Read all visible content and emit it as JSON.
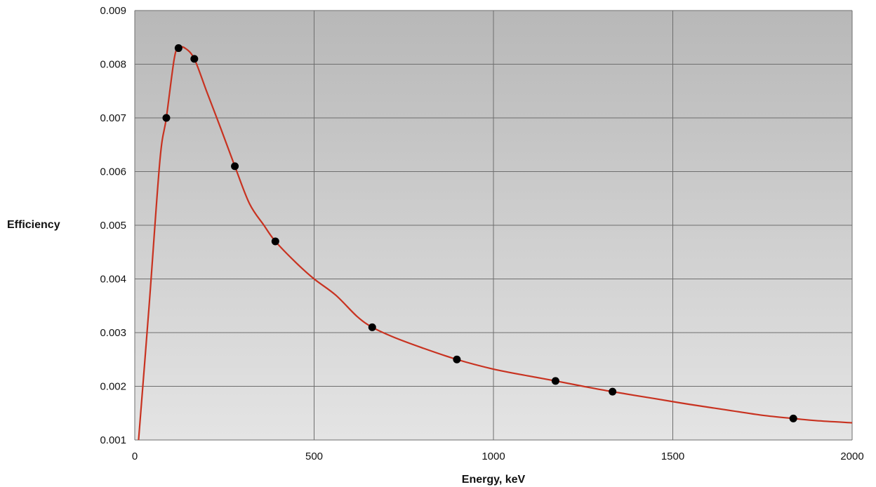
{
  "chart_data": {
    "type": "scatter",
    "xlabel": "Energy, keV",
    "ylabel": "Efficiency",
    "xlim": [
      0,
      2000
    ],
    "ylim": [
      0.001,
      0.009
    ],
    "x_ticks": [
      "0",
      "500",
      "1000",
      "1500",
      "2000"
    ],
    "y_ticks": [
      "0.001",
      "0.002",
      "0.003",
      "0.004",
      "0.005",
      "0.006",
      "0.007",
      "0.008",
      "0.009"
    ],
    "grid": true,
    "legend": "none",
    "series": [
      {
        "kind": "points",
        "x": [
          88,
          122,
          166,
          279,
          392,
          662,
          898,
          1173,
          1332,
          1836
        ],
        "y": [
          0.007,
          0.0083,
          0.0081,
          0.0061,
          0.0047,
          0.0031,
          0.0025,
          0.0021,
          0.0019,
          0.0014
        ]
      },
      {
        "kind": "fit-curve",
        "x": [
          10,
          40,
          70,
          88,
          110,
          122,
          140,
          166,
          200,
          240,
          279,
          320,
          360,
          392,
          450,
          500,
          560,
          620,
          662,
          720,
          800,
          898,
          1000,
          1100,
          1173,
          1250,
          1332,
          1450,
          1550,
          1650,
          1750,
          1836,
          1900,
          2000
        ],
        "y": [
          0.00095,
          0.0035,
          0.0062,
          0.007,
          0.0081,
          0.0083,
          0.0083,
          0.0081,
          0.0075,
          0.0068,
          0.0061,
          0.0054,
          0.005,
          0.0047,
          0.0043,
          0.004,
          0.0037,
          0.0033,
          0.0031,
          0.00292,
          0.00272,
          0.0025,
          0.00232,
          0.00219,
          0.0021,
          0.002,
          0.0019,
          0.00177,
          0.00166,
          0.00156,
          0.00146,
          0.0014,
          0.00136,
          0.00132
        ]
      }
    ],
    "colors": {
      "plot_bg_top": "#b8b8b8",
      "plot_bg_bottom": "#e4e4e4",
      "grid": "#6e6e6e",
      "curve": "#c83220",
      "points": "#000000"
    }
  }
}
